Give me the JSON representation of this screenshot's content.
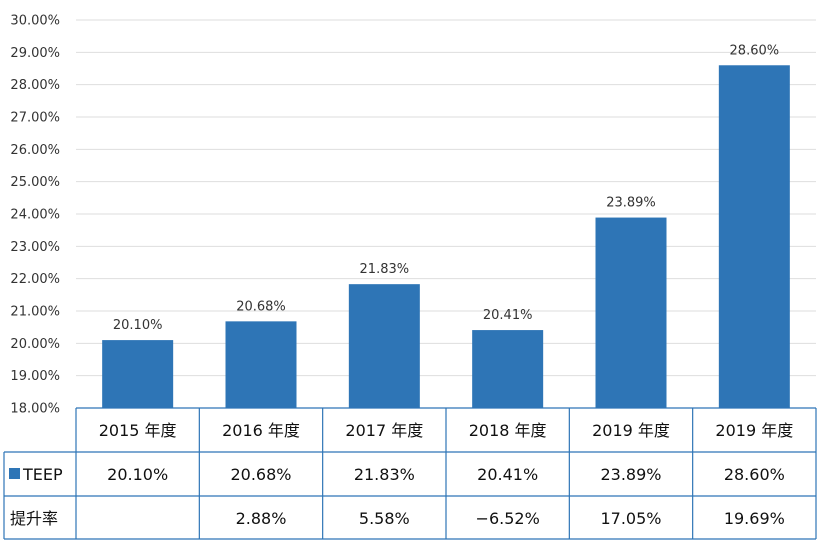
{
  "chart_data": {
    "type": "bar",
    "categories": [
      "2015 年度",
      "2016 年度",
      "2017 年度",
      "2018 年度",
      "2019 年度",
      "2019 年度"
    ],
    "series": [
      {
        "name": "TEEP",
        "values": [
          20.1,
          20.68,
          21.83,
          20.41,
          23.89,
          28.6
        ],
        "labels": [
          "20.10%",
          "20.68%",
          "21.83%",
          "20.41%",
          "23.89%",
          "28.60%"
        ],
        "color": "#2e75b6"
      }
    ],
    "ylim": [
      18,
      30
    ],
    "y_step": 1,
    "y_tick_format": "0.00%",
    "grid": true,
    "data_table": {
      "rows": [
        {
          "label": "TEEP",
          "legend_key_color": "#2e75b6",
          "cells": [
            "20.10%",
            "20.68%",
            "21.83%",
            "20.41%",
            "23.89%",
            "28.60%"
          ]
        },
        {
          "label": "提升率",
          "cells": [
            "",
            "2.88%",
            "5.58%",
            "−6.52%",
            "17.05%",
            "19.69%"
          ]
        }
      ]
    }
  }
}
